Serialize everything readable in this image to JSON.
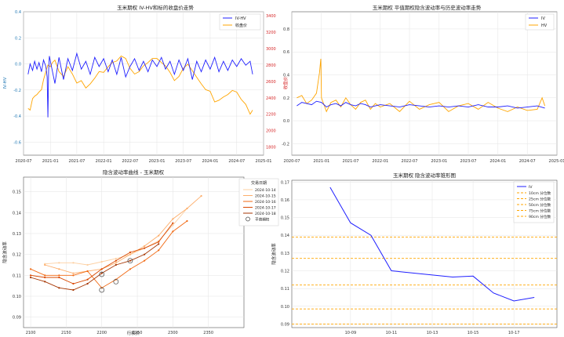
{
  "chart_data": [
    {
      "type": "line",
      "title": "玉米期权 IV-HV和标的收盘价走势",
      "ylabel": "IV-HV",
      "y2label": "收盘价",
      "ylim": [
        -0.7,
        0.4
      ],
      "y2lim": [
        1700,
        3450
      ],
      "xlim": [
        "2020-07-01",
        "2025-01-01"
      ],
      "yticks": [
        "0.4",
        "0.2",
        "0.0",
        "-0.2",
        "-0.4",
        "-0.6"
      ],
      "y2ticks": [
        "3400",
        "3200",
        "3000",
        "2800",
        "2600",
        "2400",
        "2200",
        "2000",
        "1800"
      ],
      "xticks": [
        "2020-07",
        "2021-01",
        "2021-07",
        "2022-01",
        "2022-07",
        "2023-01",
        "2023-07",
        "2024-01",
        "2024-07",
        "2025-01"
      ],
      "legend_position": "top-right",
      "grid": true,
      "series": [
        {
          "name": "IV-HV",
          "color": "#1f1fff",
          "axis": "left",
          "x": [
            "2020-08-01",
            "2020-08-15",
            "2020-09-01",
            "2020-09-15",
            "2020-10-01",
            "2020-10-15",
            "2020-11-01",
            "2020-11-15",
            "2020-12-01",
            "2020-12-10",
            "2020-12-15",
            "2020-12-20",
            "2020-12-25",
            "2021-01-01",
            "2021-02-01",
            "2021-03-01",
            "2021-04-01",
            "2021-05-01",
            "2021-06-01",
            "2021-07-01",
            "2021-08-01",
            "2021-09-01",
            "2021-10-01",
            "2021-11-01",
            "2021-12-01",
            "2022-01-01",
            "2022-02-01",
            "2022-03-01",
            "2022-04-01",
            "2022-05-01",
            "2022-06-01",
            "2022-07-01",
            "2022-08-01",
            "2022-09-01",
            "2022-10-01",
            "2022-11-01",
            "2022-12-01",
            "2023-01-01",
            "2023-02-01",
            "2023-03-01",
            "2023-04-01",
            "2023-05-01",
            "2023-06-01",
            "2023-07-01",
            "2023-08-01",
            "2023-09-01",
            "2023-10-01",
            "2023-11-01",
            "2023-12-01",
            "2024-01-01",
            "2024-02-01",
            "2024-03-01",
            "2024-04-01",
            "2024-05-01",
            "2024-06-01",
            "2024-07-01",
            "2024-08-01",
            "2024-09-01",
            "2024-10-01",
            "2024-10-18"
          ],
          "values": [
            -0.08,
            0.0,
            -0.05,
            0.02,
            -0.04,
            0.01,
            -0.06,
            0.03,
            -0.02,
            -0.1,
            -0.41,
            -0.05,
            0.06,
            0.02,
            -0.15,
            0.05,
            -0.12,
            0.04,
            -0.05,
            0.08,
            -0.04,
            0.02,
            -0.08,
            0.05,
            -0.02,
            0.04,
            -0.06,
            0.03,
            -0.08,
            0.05,
            -0.1,
            -0.02,
            0.04,
            -0.05,
            0.02,
            -0.06,
            0.03,
            -0.02,
            0.05,
            -0.04,
            0.02,
            -0.08,
            0.03,
            -0.05,
            0.04,
            -0.12,
            0.02,
            -0.06,
            0.03,
            -0.04,
            0.05,
            -0.06,
            0.02,
            -0.05,
            0.03,
            -0.02,
            0.04,
            -0.01,
            0.02,
            -0.08
          ]
        },
        {
          "name": "收盘价",
          "color": "#ffa500",
          "axis": "right",
          "x": [
            "2020-08-01",
            "2020-08-15",
            "2020-09-01",
            "2020-09-15",
            "2020-10-01",
            "2020-10-15",
            "2020-11-01",
            "2020-11-15",
            "2020-12-01",
            "2020-12-15",
            "2021-01-01",
            "2021-01-15",
            "2021-02-01",
            "2021-03-01",
            "2021-04-01",
            "2021-05-01",
            "2021-06-01",
            "2021-07-01",
            "2021-08-01",
            "2021-09-01",
            "2021-10-01",
            "2021-11-01",
            "2021-12-01",
            "2022-01-01",
            "2022-02-01",
            "2022-03-01",
            "2022-04-01",
            "2022-05-01",
            "2022-06-01",
            "2022-07-01",
            "2022-08-01",
            "2022-09-01",
            "2022-10-01",
            "2022-11-01",
            "2022-12-01",
            "2023-01-01",
            "2023-02-01",
            "2023-03-01",
            "2023-04-01",
            "2023-05-01",
            "2023-06-01",
            "2023-07-01",
            "2023-08-01",
            "2023-09-01",
            "2023-10-01",
            "2023-11-01",
            "2023-12-01",
            "2024-01-01",
            "2024-02-01",
            "2024-03-01",
            "2024-04-01",
            "2024-05-01",
            "2024-06-01",
            "2024-07-01",
            "2024-08-01",
            "2024-09-01",
            "2024-10-01",
            "2024-10-18"
          ],
          "values": [
            2270,
            2250,
            2390,
            2420,
            2440,
            2470,
            2500,
            2620,
            2720,
            2800,
            2780,
            2830,
            2860,
            2720,
            2660,
            2780,
            2690,
            2580,
            2610,
            2520,
            2570,
            2640,
            2720,
            2710,
            2780,
            2830,
            2850,
            2910,
            2880,
            2760,
            2690,
            2720,
            2790,
            2830,
            2880,
            2880,
            2830,
            2790,
            2710,
            2610,
            2660,
            2760,
            2810,
            2730,
            2650,
            2570,
            2500,
            2480,
            2350,
            2370,
            2410,
            2440,
            2490,
            2470,
            2380,
            2320,
            2200,
            2250
          ]
        }
      ]
    },
    {
      "type": "line",
      "title": "玉米期权 平值期权隐含波动率与历史波动率走势",
      "ylim": [
        -0.3,
        0.95
      ],
      "xlim": [
        "2020-07-01",
        "2025-01-01"
      ],
      "yticks": [
        "0.8",
        "0.6",
        "0.4",
        "0.2",
        "0.0",
        "-0.2"
      ],
      "xticks": [
        "2020-07",
        "2021-01",
        "2021-07",
        "2022-01",
        "2022-07",
        "2023-01",
        "2023-07",
        "2024-01",
        "2024-07",
        "2025-01"
      ],
      "legend_position": "top-right",
      "grid": true,
      "series": [
        {
          "name": "IV",
          "color": "#1f1fff",
          "x": [
            "2020-08-01",
            "2020-09-01",
            "2020-10-01",
            "2020-11-01",
            "2020-12-01",
            "2021-01-01",
            "2021-02-01",
            "2021-03-01",
            "2021-04-01",
            "2021-05-01",
            "2021-06-01",
            "2021-07-01",
            "2021-08-01",
            "2021-09-01",
            "2021-10-01",
            "2021-11-01",
            "2021-12-01",
            "2022-01-01",
            "2022-03-01",
            "2022-05-01",
            "2022-07-01",
            "2022-09-01",
            "2022-11-01",
            "2023-01-01",
            "2023-03-01",
            "2023-05-01",
            "2023-07-01",
            "2023-09-01",
            "2023-11-01",
            "2024-01-01",
            "2024-03-01",
            "2024-05-01",
            "2024-07-01",
            "2024-09-01",
            "2024-10-18"
          ],
          "values": [
            0.13,
            0.16,
            0.15,
            0.14,
            0.17,
            0.16,
            0.12,
            0.14,
            0.15,
            0.13,
            0.16,
            0.14,
            0.13,
            0.15,
            0.14,
            0.12,
            0.13,
            0.14,
            0.13,
            0.12,
            0.14,
            0.13,
            0.12,
            0.13,
            0.12,
            0.13,
            0.12,
            0.14,
            0.12,
            0.12,
            0.13,
            0.11,
            0.12,
            0.13,
            0.11
          ]
        },
        {
          "name": "HV",
          "color": "#ffa500",
          "x": [
            "2020-08-01",
            "2020-09-01",
            "2020-10-01",
            "2020-11-01",
            "2020-12-01",
            "2020-12-20",
            "2020-12-28",
            "2021-01-01",
            "2021-02-01",
            "2021-03-01",
            "2021-04-01",
            "2021-05-01",
            "2021-06-01",
            "2021-07-01",
            "2021-08-01",
            "2021-09-01",
            "2021-10-01",
            "2021-11-01",
            "2021-12-01",
            "2022-01-01",
            "2022-03-01",
            "2022-05-01",
            "2022-07-01",
            "2022-09-01",
            "2022-11-01",
            "2023-01-01",
            "2023-03-01",
            "2023-05-01",
            "2023-07-01",
            "2023-09-01",
            "2023-11-01",
            "2024-01-01",
            "2024-03-01",
            "2024-05-01",
            "2024-07-01",
            "2024-09-01",
            "2024-10-01",
            "2024-10-18"
          ],
          "values": [
            0.2,
            0.22,
            0.15,
            0.18,
            0.24,
            0.42,
            0.54,
            0.2,
            0.08,
            0.16,
            0.18,
            0.12,
            0.2,
            0.14,
            0.1,
            0.16,
            0.18,
            0.1,
            0.15,
            0.12,
            0.15,
            0.08,
            0.17,
            0.1,
            0.14,
            0.16,
            0.08,
            0.13,
            0.15,
            0.1,
            0.16,
            0.11,
            0.08,
            0.12,
            0.09,
            0.1,
            0.2,
            0.13
          ]
        }
      ]
    },
    {
      "type": "line",
      "title": "隐含波动率曲线 - 玉米期权",
      "xlabel": "行权价",
      "ylabel": "隐含波动率",
      "xlim": [
        2090,
        2400
      ],
      "ylim": [
        0.085,
        0.157
      ],
      "xticks": [
        2100,
        2150,
        2200,
        2250,
        2300,
        2350
      ],
      "yticks": [
        0.09,
        0.1,
        0.11,
        0.12,
        0.13,
        0.14,
        0.15
      ],
      "legend_title": "交易日期",
      "legend_position": "top-right",
      "grid": true,
      "series": [
        {
          "name": "2024-10-14",
          "color": "#fdd0a2",
          "x": [
            2120,
            2140,
            2160,
            2180,
            2200,
            2220,
            2240,
            2260,
            2280,
            2300,
            2320
          ],
          "values": [
            0.1155,
            0.116,
            0.116,
            0.115,
            0.1165,
            0.118,
            0.12,
            0.123,
            0.1265,
            0.134,
            0.142
          ]
        },
        {
          "name": "2024-10-15",
          "color": "#fdae6b",
          "x": [
            2120,
            2140,
            2160,
            2180,
            2200,
            2220,
            2240,
            2260,
            2280,
            2300,
            2320,
            2340
          ],
          "values": [
            0.115,
            0.113,
            0.111,
            0.112,
            0.113,
            0.116,
            0.12,
            0.124,
            0.129,
            0.137,
            0.142,
            0.148
          ]
        },
        {
          "name": "2024-10-16",
          "color": "#f16913",
          "x": [
            2100,
            2120,
            2140,
            2160,
            2180,
            2200,
            2220,
            2240,
            2260,
            2280,
            2300,
            2320
          ],
          "values": [
            0.113,
            0.11,
            0.11,
            0.11,
            0.112,
            0.104,
            0.108,
            0.113,
            0.117,
            0.122,
            0.131,
            0.136
          ]
        },
        {
          "name": "2024-10-17",
          "color": "#d94801",
          "x": [
            2100,
            2120,
            2140,
            2160,
            2180,
            2200,
            2220,
            2240,
            2260,
            2280,
            2300
          ],
          "values": [
            0.11,
            0.109,
            0.109,
            0.106,
            0.108,
            0.113,
            0.117,
            0.121,
            0.123,
            0.126,
            0.135
          ]
        },
        {
          "name": "2024-10-18",
          "color": "#a63603",
          "x": [
            2100,
            2120,
            2140,
            2160,
            2180,
            2200,
            2220,
            2240,
            2260,
            2280
          ],
          "values": [
            0.109,
            0.107,
            0.104,
            0.103,
            0.106,
            0.111,
            0.115,
            0.117,
            0.12,
            0.125
          ]
        }
      ],
      "atm_points": {
        "name": "平值期权",
        "x": [
          2200,
          2220,
          2200,
          2240
        ],
        "values": [
          0.103,
          0.107,
          0.1105,
          0.117
        ]
      }
    },
    {
      "type": "line",
      "title": "玉米期权 隐含波动率锥形图",
      "xlabel": "",
      "ylabel": "隐含波动率",
      "ylim": [
        0.088,
        0.171
      ],
      "xticks": [
        "10-09",
        "10-11",
        "10-13",
        "10-15",
        "10-17"
      ],
      "yticks": [
        0.09,
        0.1,
        0.11,
        0.12,
        0.13,
        0.14,
        0.15,
        0.16,
        0.17
      ],
      "legend_position": "top-right",
      "grid": true,
      "series": [
        {
          "name": "IV",
          "color": "#1f1fff",
          "x": [
            "10-08",
            "10-09",
            "10-10",
            "10-11",
            "10-14",
            "10-15",
            "10-16",
            "10-17",
            "10-18"
          ],
          "values": [
            0.167,
            0.147,
            0.14,
            0.12,
            0.1165,
            0.117,
            0.1075,
            0.103,
            0.105
          ]
        }
      ],
      "percentiles": [
        {
          "name": "10cm 分位数",
          "value": 0.09
        },
        {
          "name": "25cm 分位数",
          "value": 0.0985
        },
        {
          "name": "50cm 分位数",
          "value": 0.112
        },
        {
          "name": "75cm 分位数",
          "value": 0.127
        },
        {
          "name": "90cm 分位数",
          "value": 0.139
        }
      ],
      "percentile_color": "#ffa500"
    }
  ]
}
